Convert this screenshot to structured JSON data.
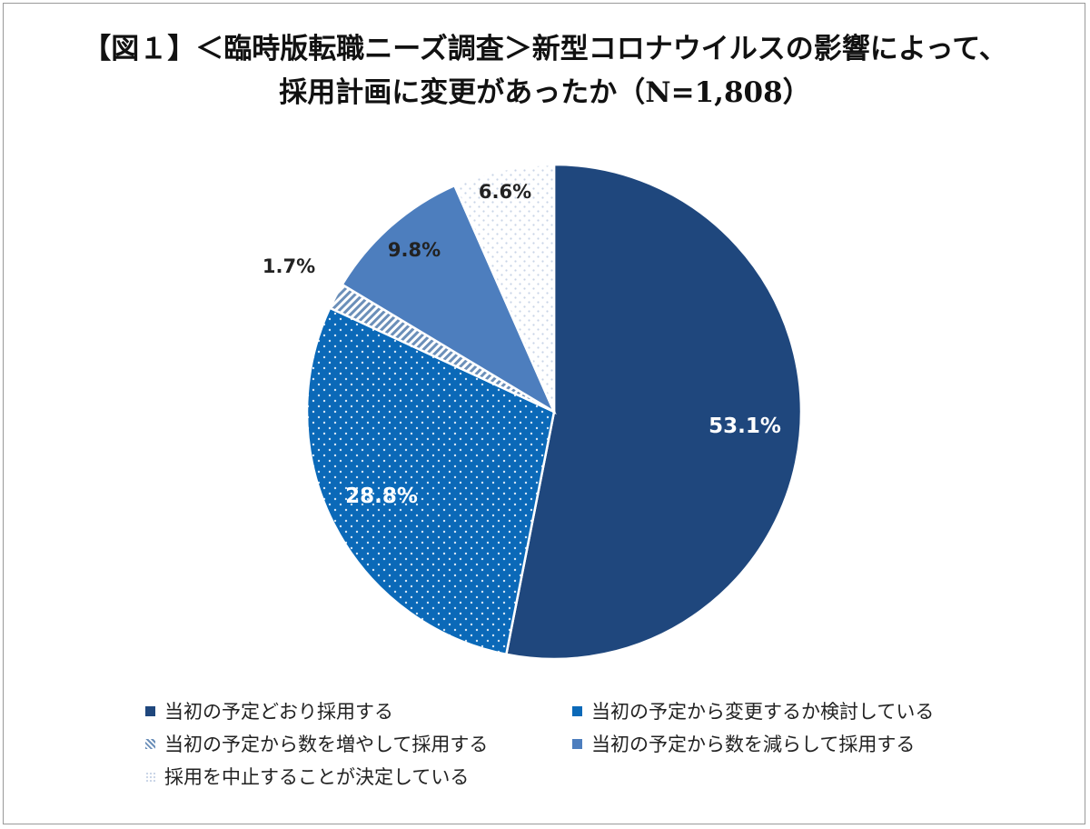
{
  "chart_data": {
    "type": "pie",
    "title": "【図１】＜臨時版転職ニーズ調査＞新型コロナウイルスの影響によって、",
    "subtitle": "採用計画に変更があったか（N=1,808）",
    "start_angle_deg": 0,
    "direction": "clockwise",
    "legend_position": "bottom",
    "slices": [
      {
        "label": "当初の予定どおり採用する",
        "value": 53.1,
        "value_label": "53.1%",
        "color": "#1f477d",
        "pattern": "solid"
      },
      {
        "label": "当初の予定から変更するか検討している",
        "value": 28.8,
        "value_label": "28.8%",
        "color": "#0b69b8",
        "pattern": "dots"
      },
      {
        "label": "当初の予定から数を増やして採用する",
        "value": 1.7,
        "value_label": "1.7%",
        "color": "#6b8fb9",
        "pattern": "hatch"
      },
      {
        "label": "当初の予定から数を減らして採用する",
        "value": 9.8,
        "value_label": "9.8%",
        "color": "#4d7ebe",
        "pattern": "solid"
      },
      {
        "label": "採用を中止することが決定している",
        "value": 6.6,
        "value_label": "6.6%",
        "color": "#c8d4e6",
        "pattern": "light-dots"
      }
    ]
  }
}
